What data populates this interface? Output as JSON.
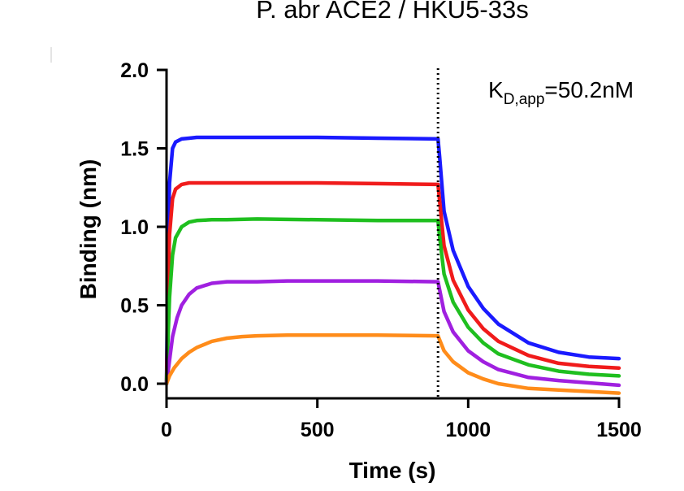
{
  "chart_data": {
    "type": "line",
    "title": "P. abr ACE2 / HKU5-33s",
    "xlabel": "Time (s)",
    "ylabel": "Binding (nm)",
    "xlim": [
      0,
      1500
    ],
    "ylim": [
      0,
      2.0
    ],
    "x_ticks": [
      "0",
      "500",
      "1000",
      "1500"
    ],
    "y_ticks": [
      "0.0",
      "0.5",
      "1.0",
      "1.5",
      "2.0"
    ],
    "grid": false,
    "legend": "none",
    "dissociation_start": 900,
    "annotation": {
      "main": "K",
      "sub": "D,app",
      "value": "=50.2nM"
    },
    "series": [
      {
        "color": "#1a1aff",
        "x": [
          0,
          5,
          10,
          20,
          30,
          50,
          75,
          100,
          150,
          200,
          300,
          500,
          700,
          900,
          905,
          920,
          950,
          1000,
          1050,
          1100,
          1200,
          1300,
          1400,
          1500
        ],
        "y": [
          0.0,
          0.9,
          1.28,
          1.5,
          1.54,
          1.56,
          1.565,
          1.57,
          1.57,
          1.57,
          1.57,
          1.57,
          1.565,
          1.56,
          1.45,
          1.1,
          0.85,
          0.62,
          0.48,
          0.38,
          0.26,
          0.2,
          0.17,
          0.16
        ]
      },
      {
        "color": "#f01b1b",
        "x": [
          0,
          5,
          10,
          20,
          30,
          50,
          75,
          100,
          150,
          200,
          300,
          500,
          700,
          900,
          905,
          920,
          950,
          1000,
          1050,
          1100,
          1200,
          1300,
          1400,
          1500
        ],
        "y": [
          0.0,
          0.6,
          0.95,
          1.18,
          1.24,
          1.27,
          1.28,
          1.28,
          1.28,
          1.28,
          1.28,
          1.28,
          1.275,
          1.27,
          1.17,
          0.88,
          0.66,
          0.47,
          0.35,
          0.27,
          0.18,
          0.13,
          0.11,
          0.1
        ]
      },
      {
        "color": "#1fbf1f",
        "x": [
          0,
          5,
          10,
          20,
          30,
          50,
          75,
          100,
          150,
          200,
          300,
          500,
          700,
          900,
          905,
          920,
          950,
          1000,
          1050,
          1100,
          1200,
          1300,
          1400,
          1500
        ],
        "y": [
          0.0,
          0.3,
          0.55,
          0.82,
          0.93,
          1.0,
          1.03,
          1.04,
          1.045,
          1.045,
          1.05,
          1.045,
          1.04,
          1.04,
          0.94,
          0.7,
          0.52,
          0.36,
          0.26,
          0.19,
          0.12,
          0.08,
          0.06,
          0.05
        ]
      },
      {
        "color": "#a020e0",
        "x": [
          0,
          10,
          20,
          35,
          50,
          75,
          100,
          150,
          200,
          250,
          300,
          400,
          500,
          700,
          900,
          905,
          920,
          950,
          1000,
          1050,
          1100,
          1200,
          1300,
          1400,
          1500
        ],
        "y": [
          0.0,
          0.15,
          0.3,
          0.42,
          0.5,
          0.57,
          0.61,
          0.64,
          0.65,
          0.65,
          0.65,
          0.655,
          0.655,
          0.655,
          0.65,
          0.6,
          0.46,
          0.33,
          0.21,
          0.14,
          0.09,
          0.04,
          0.02,
          0.005,
          -0.01
        ]
      },
      {
        "color": "#ff8c1a",
        "x": [
          0,
          10,
          25,
          50,
          75,
          100,
          150,
          200,
          250,
          300,
          400,
          500,
          700,
          900,
          905,
          920,
          950,
          1000,
          1050,
          1100,
          1200,
          1300,
          1400,
          1500
        ],
        "y": [
          0.0,
          0.05,
          0.1,
          0.16,
          0.2,
          0.23,
          0.27,
          0.29,
          0.3,
          0.305,
          0.31,
          0.31,
          0.31,
          0.305,
          0.28,
          0.21,
          0.14,
          0.07,
          0.03,
          0.0,
          -0.03,
          -0.04,
          -0.05,
          -0.06
        ]
      }
    ]
  }
}
